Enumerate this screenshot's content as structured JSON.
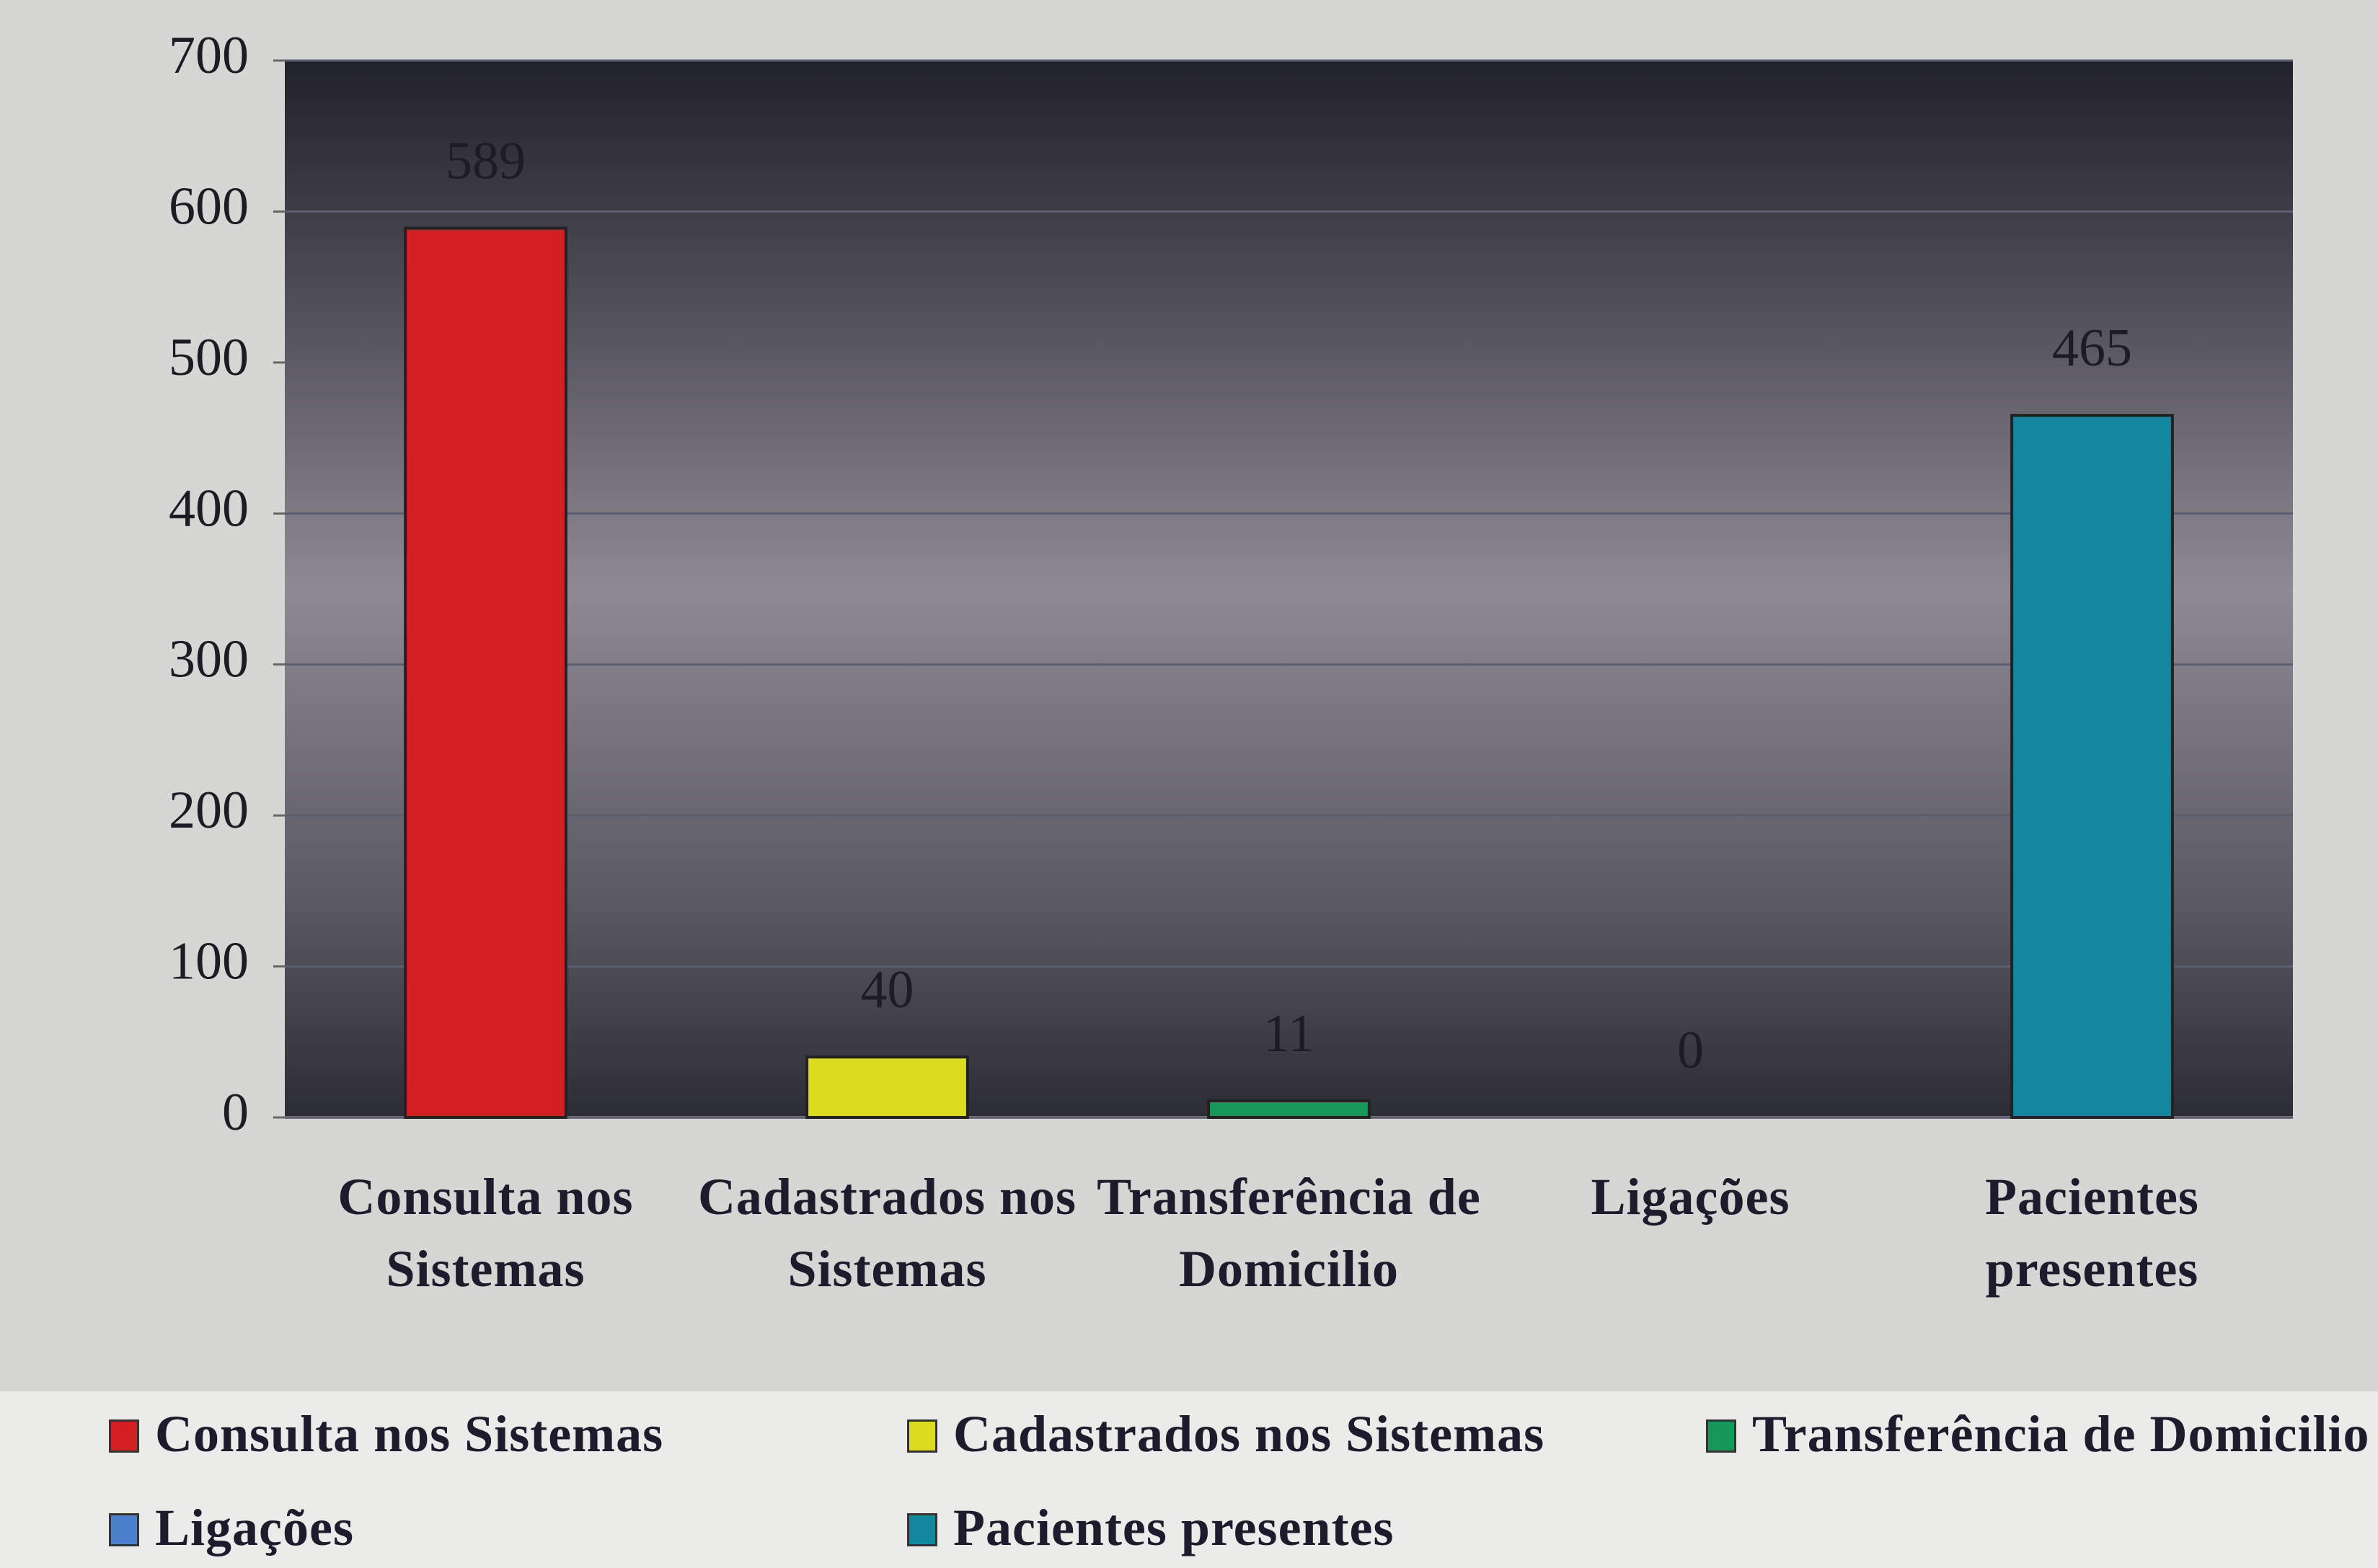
{
  "chart_data": {
    "type": "bar",
    "categories": [
      "Consulta nos Sistemas",
      "Cadastrados nos Sistemas",
      "Transferência de Domicilio",
      "Ligações",
      "Pacientes presentes"
    ],
    "values": [
      589,
      40,
      11,
      0,
      465
    ],
    "colors": [
      "#d41f22",
      "#dcdc1e",
      "#16985a",
      "#4a7fca",
      "#12879f"
    ],
    "ylim": [
      0,
      700
    ],
    "yticks": [
      0,
      100,
      200,
      300,
      400,
      500,
      600,
      700
    ],
    "grid": true,
    "legend": "bottom"
  }
}
